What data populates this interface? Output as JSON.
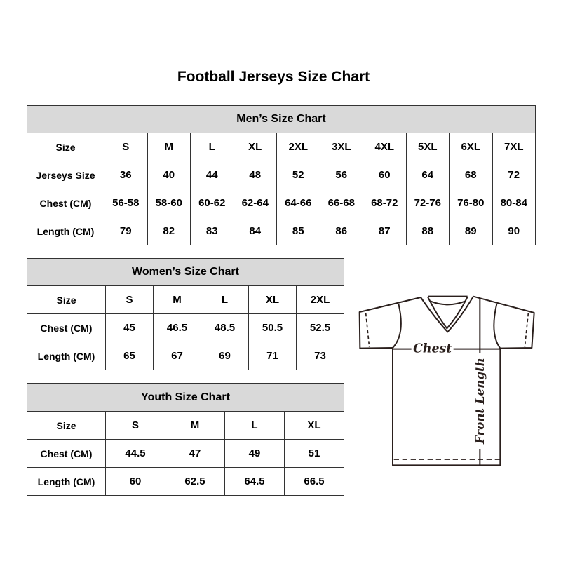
{
  "title": "Football Jerseys Size Chart",
  "men": {
    "title": "Men’s Size Chart",
    "rows": [
      {
        "label": "Size",
        "values": [
          "S",
          "M",
          "L",
          "XL",
          "2XL",
          "3XL",
          "4XL",
          "5XL",
          "6XL",
          "7XL"
        ]
      },
      {
        "label": "Jerseys Size",
        "values": [
          "36",
          "40",
          "44",
          "48",
          "52",
          "56",
          "60",
          "64",
          "68",
          "72"
        ]
      },
      {
        "label": "Chest (CM)",
        "values": [
          "56-58",
          "58-60",
          "60-62",
          "62-64",
          "64-66",
          "66-68",
          "68-72",
          "72-76",
          "76-80",
          "80-84"
        ]
      },
      {
        "label": "Length (CM)",
        "values": [
          "79",
          "82",
          "83",
          "84",
          "85",
          "86",
          "87",
          "88",
          "89",
          "90"
        ]
      }
    ]
  },
  "women": {
    "title": "Women’s Size Chart",
    "rows": [
      {
        "label": "Size",
        "values": [
          "S",
          "M",
          "L",
          "XL",
          "2XL"
        ]
      },
      {
        "label": "Chest (CM)",
        "values": [
          "45",
          "46.5",
          "48.5",
          "50.5",
          "52.5"
        ]
      },
      {
        "label": "Length (CM)",
        "values": [
          "65",
          "67",
          "69",
          "71",
          "73"
        ]
      }
    ]
  },
  "youth": {
    "title": "Youth Size Chart",
    "rows": [
      {
        "label": "Size",
        "values": [
          "S",
          "M",
          "L",
          "XL"
        ]
      },
      {
        "label": "Chest (CM)",
        "values": [
          "44.5",
          "47",
          "49",
          "51"
        ]
      },
      {
        "label": "Length (CM)",
        "values": [
          "60",
          "62.5",
          "64.5",
          "66.5"
        ]
      }
    ]
  },
  "diagram": {
    "chest_label": "Chest",
    "length_label": "Front Length"
  },
  "colors": {
    "header_bg": "#d9d9d9",
    "border": "#333333"
  }
}
